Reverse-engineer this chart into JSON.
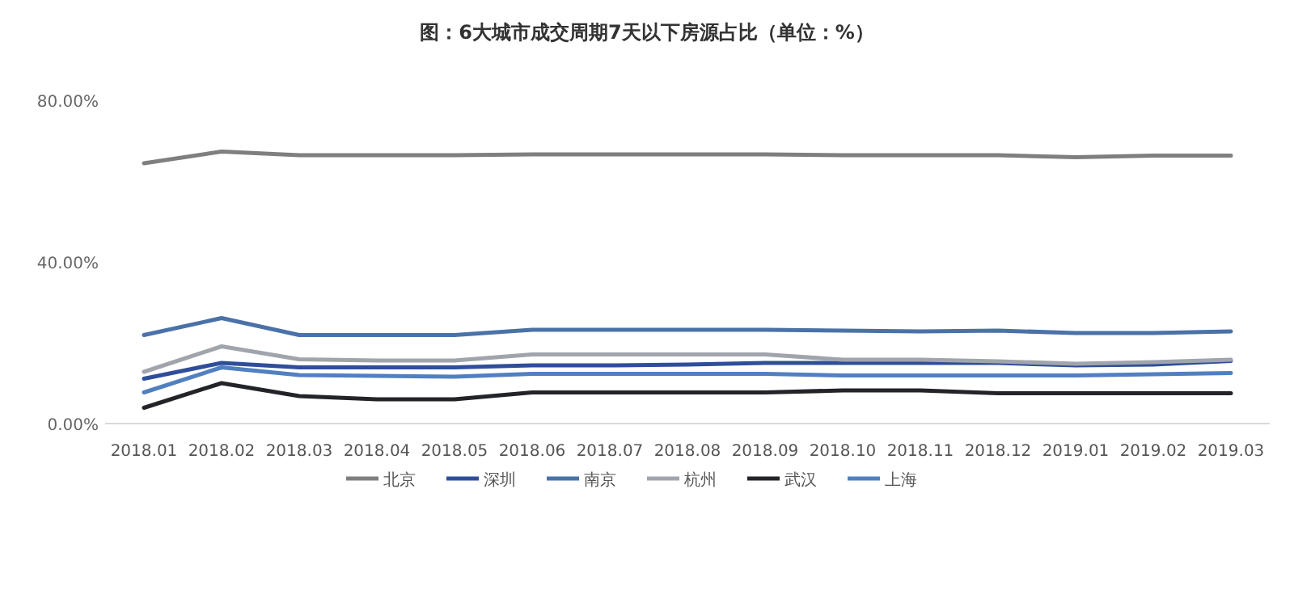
{
  "chart_data": {
    "type": "line",
    "title": "图：6大城市成交周期7天以下房源占比（单位：%）",
    "categories": [
      "2018.01",
      "2018.02",
      "2018.03",
      "2018.04",
      "2018.05",
      "2018.06",
      "2018.07",
      "2018.08",
      "2018.09",
      "2018.10",
      "2018.11",
      "2018.12",
      "2019.01",
      "2019.02",
      "2019.03"
    ],
    "series": [
      {
        "name": "北京",
        "color": "#7f7f7f",
        "values": [
          64.4,
          67.3,
          66.4,
          66.4,
          66.4,
          66.6,
          66.6,
          66.6,
          66.6,
          66.4,
          66.4,
          66.4,
          65.9,
          66.3,
          66.3
        ]
      },
      {
        "name": "深圳",
        "color": "#2f4e9a",
        "values": [
          11.1,
          15.0,
          13.9,
          13.9,
          13.9,
          14.4,
          14.4,
          14.6,
          15.0,
          15.0,
          15.0,
          15.0,
          14.4,
          14.6,
          15.5
        ]
      },
      {
        "name": "南京",
        "color": "#4a72a8",
        "values": [
          21.9,
          26.1,
          21.9,
          21.9,
          21.9,
          23.2,
          23.2,
          23.2,
          23.2,
          23.0,
          22.8,
          23.0,
          22.4,
          22.4,
          22.8
        ]
      },
      {
        "name": "杭州",
        "color": "#a0a5ad",
        "values": [
          12.8,
          19.1,
          15.9,
          15.6,
          15.6,
          17.1,
          17.1,
          17.1,
          17.1,
          15.8,
          15.8,
          15.4,
          14.8,
          15.2,
          15.8
        ]
      },
      {
        "name": "武汉",
        "color": "#222428",
        "values": [
          3.9,
          10.0,
          6.8,
          6.0,
          6.0,
          7.7,
          7.7,
          7.7,
          7.7,
          8.2,
          8.2,
          7.5,
          7.5,
          7.5,
          7.5
        ]
      },
      {
        "name": "上海",
        "color": "#5080c0",
        "values": [
          7.7,
          13.9,
          12.0,
          11.8,
          11.6,
          12.3,
          12.3,
          12.3,
          12.3,
          11.9,
          11.9,
          11.9,
          11.9,
          12.2,
          12.5
        ]
      }
    ],
    "ylim": [
      0,
      80
    ],
    "yticks": [
      {
        "value": 0,
        "label": "0.00%"
      },
      {
        "value": 40,
        "label": "40.00%"
      },
      {
        "value": 80,
        "label": "80.00%"
      }
    ],
    "legend": "bottom"
  }
}
